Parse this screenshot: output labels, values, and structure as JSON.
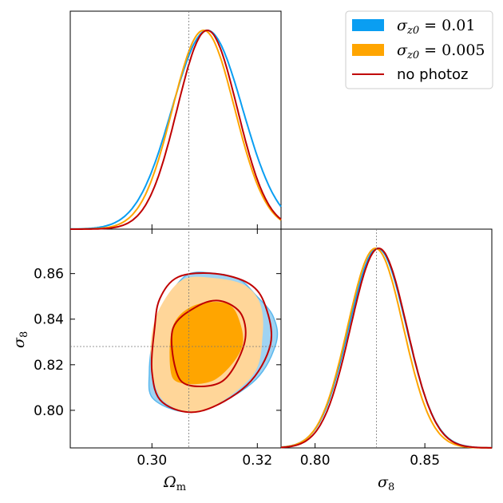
{
  "chart_data": {
    "type": "triangle",
    "parameters": [
      {
        "name": "Omega_m",
        "label": "Ω",
        "label_sub": "m",
        "ticks": [
          0.3,
          0.32
        ],
        "tick_labels": [
          "0.30",
          "0.32"
        ],
        "range": [
          0.2845,
          0.3245
        ],
        "fiducial": 0.307
      },
      {
        "name": "sigma_8",
        "label": "σ",
        "label_sub": "8",
        "ticks": [
          0.8,
          0.85
        ],
        "tick_labels": [
          "0.80",
          "0.85"
        ],
        "range": [
          0.7845,
          0.8805
        ],
        "fiducial": 0.828
      },
      {
        "name": "sigma_8_2d",
        "ticks": [
          0.8,
          0.82,
          0.84,
          0.86
        ],
        "tick_labels": [
          "0.80",
          "0.82",
          "0.84",
          "0.86"
        ],
        "range": [
          0.7835,
          0.8795
        ]
      }
    ],
    "legend": {
      "placement": "top-right",
      "entries": [
        {
          "text_pre": "σ",
          "text_sub": "z0",
          "text_post": " = 0.01",
          "color": "#0a9ef2",
          "kind": "patch"
        },
        {
          "text_pre": "σ",
          "text_sub": "z0",
          "text_post": " = 0.005",
          "color": "#ffa500",
          "kind": "patch"
        },
        {
          "text_pre": "no photoz",
          "text_sub": "",
          "text_post": "",
          "color": "#c00000",
          "kind": "line"
        }
      ]
    },
    "series": [
      {
        "color": "#0a9ef2",
        "omega_m": {
          "mean": 0.3105,
          "sigma": 0.0067
        },
        "sigma_8": {
          "mean": 0.8285,
          "sigma": 0.0131
        },
        "fill_inner": "#0a9ef2",
        "fill_outer": "#a8d8f4"
      },
      {
        "color": "#ffa500",
        "omega_m": {
          "mean": 0.3098,
          "sigma": 0.0059
        },
        "sigma_8": {
          "mean": 0.8275,
          "sigma": 0.0127
        },
        "fill_inner": "#ffa500",
        "fill_outer": "#ffd699"
      },
      {
        "color": "#c00000",
        "omega_m": {
          "mean": 0.3105,
          "sigma": 0.0057
        },
        "sigma_8": {
          "mean": 0.829,
          "sigma": 0.0128
        }
      }
    ],
    "contours_2d": {
      "blue_outer": [
        [
          0.3065,
          0.8592
        ],
        [
          0.3115,
          0.8602
        ],
        [
          0.3165,
          0.8575
        ],
        [
          0.3195,
          0.851
        ],
        [
          0.323,
          0.8412
        ],
        [
          0.3235,
          0.829
        ],
        [
          0.319,
          0.812
        ],
        [
          0.3085,
          0.7995
        ],
        [
          0.3005,
          0.8045
        ],
        [
          0.2995,
          0.817
        ],
        [
          0.3005,
          0.835
        ],
        [
          0.3025,
          0.847
        ]
      ],
      "orange_outer": [
        [
          0.306,
          0.8575
        ],
        [
          0.312,
          0.858
        ],
        [
          0.3175,
          0.855
        ],
        [
          0.3205,
          0.847
        ],
        [
          0.321,
          0.833
        ],
        [
          0.319,
          0.815
        ],
        [
          0.3095,
          0.7995
        ],
        [
          0.3025,
          0.8035
        ],
        [
          0.3,
          0.817
        ],
        [
          0.3,
          0.834
        ],
        [
          0.302,
          0.847
        ]
      ],
      "orange_inner": [
        [
          0.308,
          0.846
        ],
        [
          0.314,
          0.847
        ],
        [
          0.3165,
          0.84
        ],
        [
          0.317,
          0.827
        ],
        [
          0.312,
          0.8135
        ],
        [
          0.3055,
          0.812
        ],
        [
          0.3035,
          0.818
        ],
        [
          0.304,
          0.837
        ]
      ],
      "red_outer": [
        [
          0.305,
          0.8585
        ],
        [
          0.312,
          0.86
        ],
        [
          0.3185,
          0.8555
        ],
        [
          0.3215,
          0.846
        ],
        [
          0.3225,
          0.829
        ],
        [
          0.318,
          0.811
        ],
        [
          0.309,
          0.7995
        ],
        [
          0.302,
          0.8035
        ],
        [
          0.3,
          0.817
        ],
        [
          0.3005,
          0.836
        ],
        [
          0.3015,
          0.849
        ]
      ],
      "red_inner": [
        [
          0.3085,
          0.8455
        ],
        [
          0.313,
          0.848
        ],
        [
          0.317,
          0.842
        ],
        [
          0.3175,
          0.829
        ],
        [
          0.3135,
          0.813
        ],
        [
          0.307,
          0.811
        ],
        [
          0.3045,
          0.818
        ],
        [
          0.304,
          0.836
        ]
      ]
    }
  }
}
